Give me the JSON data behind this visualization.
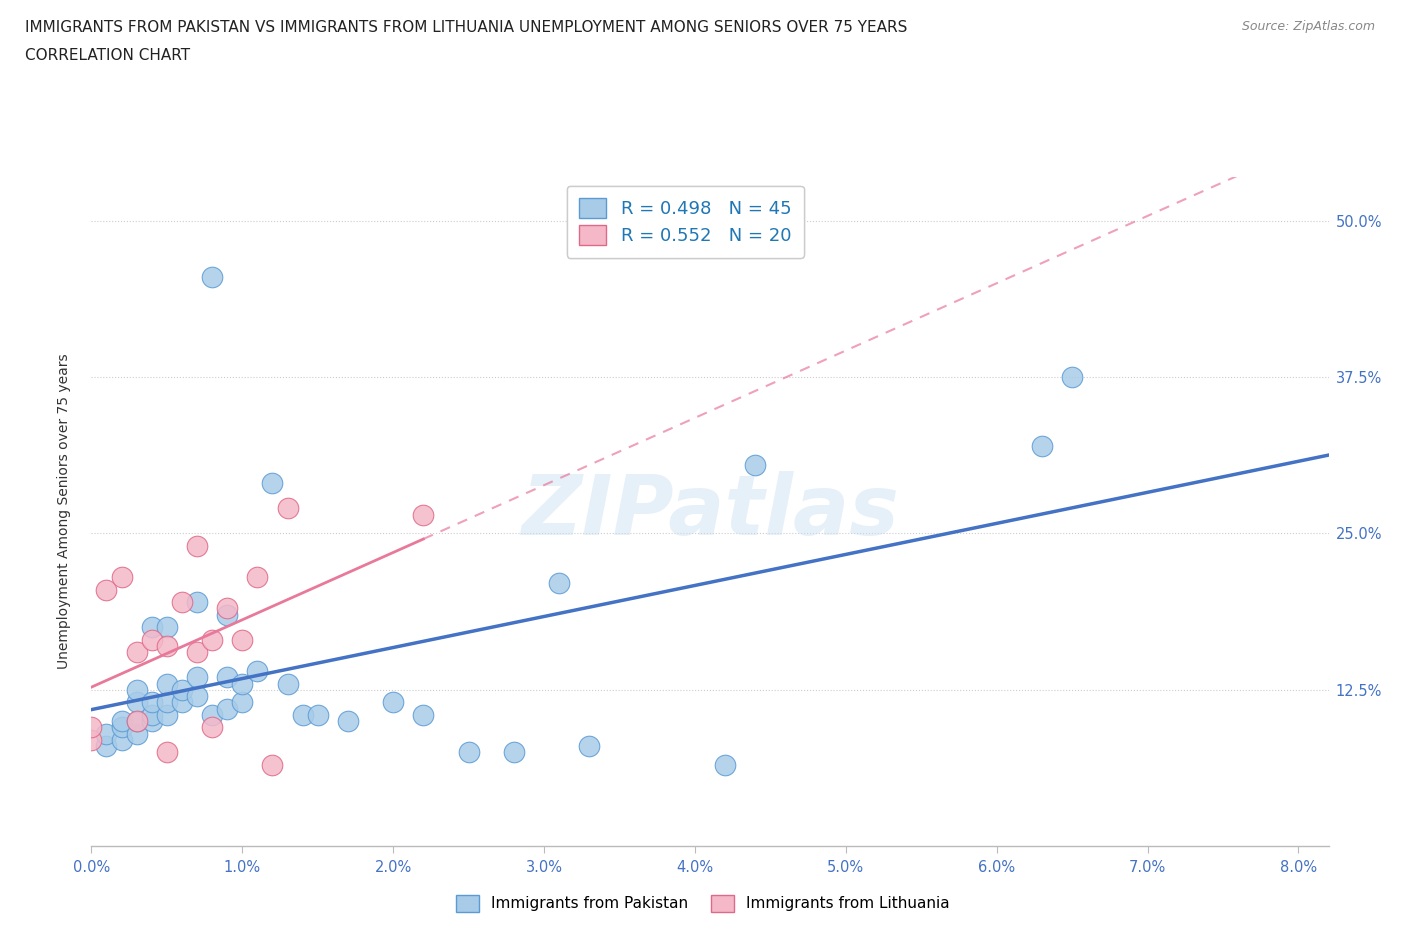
{
  "title_line1": "IMMIGRANTS FROM PAKISTAN VS IMMIGRANTS FROM LITHUANIA UNEMPLOYMENT AMONG SENIORS OVER 75 YEARS",
  "title_line2": "CORRELATION CHART",
  "source_text": "Source: ZipAtlas.com",
  "ylabel": "Unemployment Among Seniors over 75 years",
  "xlim": [
    0.0,
    0.082
  ],
  "ylim": [
    0.0,
    0.535
  ],
  "xtick_values": [
    0.0,
    0.01,
    0.02,
    0.03,
    0.04,
    0.05,
    0.06,
    0.07,
    0.08
  ],
  "xtick_labels": [
    "0.0%",
    "1.0%",
    "2.0%",
    "3.0%",
    "4.0%",
    "5.0%",
    "6.0%",
    "7.0%",
    "8.0%"
  ],
  "ytick_values": [
    0.125,
    0.25,
    0.375,
    0.5
  ],
  "ytick_labels": [
    "12.5%",
    "25.0%",
    "37.5%",
    "50.0%"
  ],
  "pakistan_color": "#a8cce8",
  "pakistan_edge_color": "#5b9bd5",
  "lithuania_color": "#f4b8c8",
  "lithuania_edge_color": "#e06888",
  "pakistan_line_color": "#4472c4",
  "lithuania_line_color": "#e8799a",
  "pakistan_R": 0.498,
  "pakistan_N": 45,
  "lithuania_R": 0.552,
  "lithuania_N": 20,
  "watermark": "ZIPatlas",
  "pakistan_x": [
    0.001,
    0.001,
    0.002,
    0.002,
    0.002,
    0.003,
    0.003,
    0.003,
    0.003,
    0.004,
    0.004,
    0.004,
    0.004,
    0.005,
    0.005,
    0.005,
    0.005,
    0.006,
    0.006,
    0.007,
    0.007,
    0.007,
    0.008,
    0.008,
    0.009,
    0.009,
    0.009,
    0.01,
    0.01,
    0.011,
    0.012,
    0.013,
    0.014,
    0.015,
    0.017,
    0.02,
    0.022,
    0.025,
    0.028,
    0.031,
    0.033,
    0.042,
    0.044,
    0.063,
    0.065
  ],
  "pakistan_y": [
    0.08,
    0.09,
    0.085,
    0.095,
    0.1,
    0.09,
    0.1,
    0.115,
    0.125,
    0.1,
    0.105,
    0.115,
    0.175,
    0.105,
    0.115,
    0.13,
    0.175,
    0.115,
    0.125,
    0.12,
    0.135,
    0.195,
    0.455,
    0.105,
    0.11,
    0.135,
    0.185,
    0.115,
    0.13,
    0.14,
    0.29,
    0.13,
    0.105,
    0.105,
    0.1,
    0.115,
    0.105,
    0.075,
    0.075,
    0.21,
    0.08,
    0.065,
    0.305,
    0.32,
    0.375
  ],
  "lithuania_x": [
    0.0,
    0.0,
    0.001,
    0.002,
    0.003,
    0.003,
    0.004,
    0.005,
    0.005,
    0.006,
    0.007,
    0.007,
    0.008,
    0.008,
    0.009,
    0.01,
    0.011,
    0.012,
    0.013,
    0.022
  ],
  "lithuania_y": [
    0.085,
    0.095,
    0.205,
    0.215,
    0.1,
    0.155,
    0.165,
    0.075,
    0.16,
    0.195,
    0.155,
    0.24,
    0.095,
    0.165,
    0.19,
    0.165,
    0.215,
    0.065,
    0.27,
    0.265
  ]
}
